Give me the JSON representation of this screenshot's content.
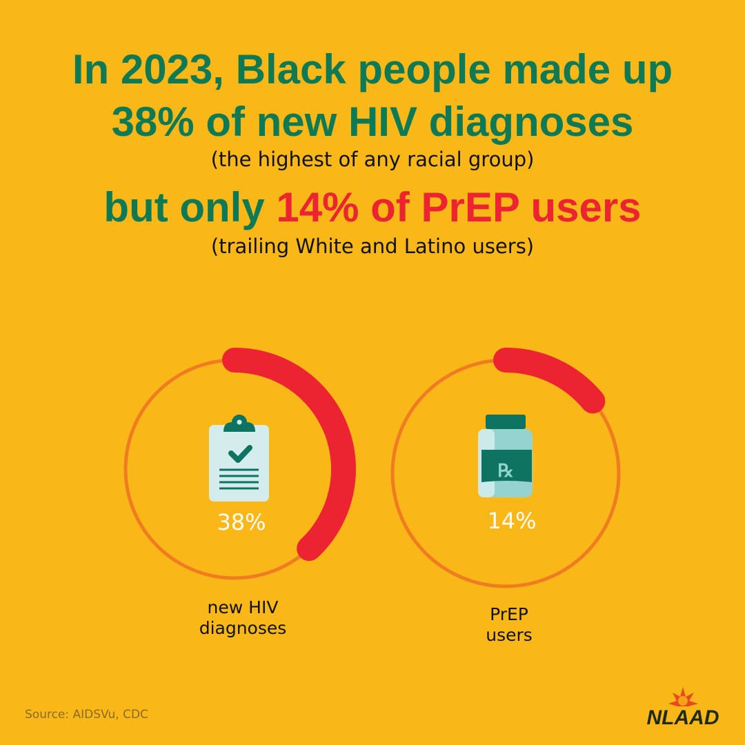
{
  "headline": {
    "line1": "In 2023, Black people made up",
    "line2": "38% of new HIV diagnoses",
    "sub1": "(the highest of any racial group)",
    "line3_prefix": "but only ",
    "line3_highlight": "14% of PrEP users",
    "sub2": "(trailing White and Latino users)"
  },
  "chart_data": {
    "type": "donut-progress",
    "charts": [
      {
        "label": "new HIV diagnoses",
        "value": 38,
        "display": "38%",
        "icon": "clipboard-check-icon"
      },
      {
        "label": "PrEP users",
        "value": 14,
        "display": "14%",
        "icon": "rx-bottle-icon"
      }
    ],
    "max": 100,
    "colors": {
      "filled": "#EC2330",
      "track": "#F07C22",
      "headline": "#0E7A55",
      "background": "#FAB718"
    }
  },
  "labels": {
    "chart1_line1": "new HIV",
    "chart1_line2": "diagnoses",
    "chart2_line1": "PrEP",
    "chart2_line2": "users"
  },
  "source": "Source: AIDSVu, CDC",
  "logo": "NLAAD"
}
